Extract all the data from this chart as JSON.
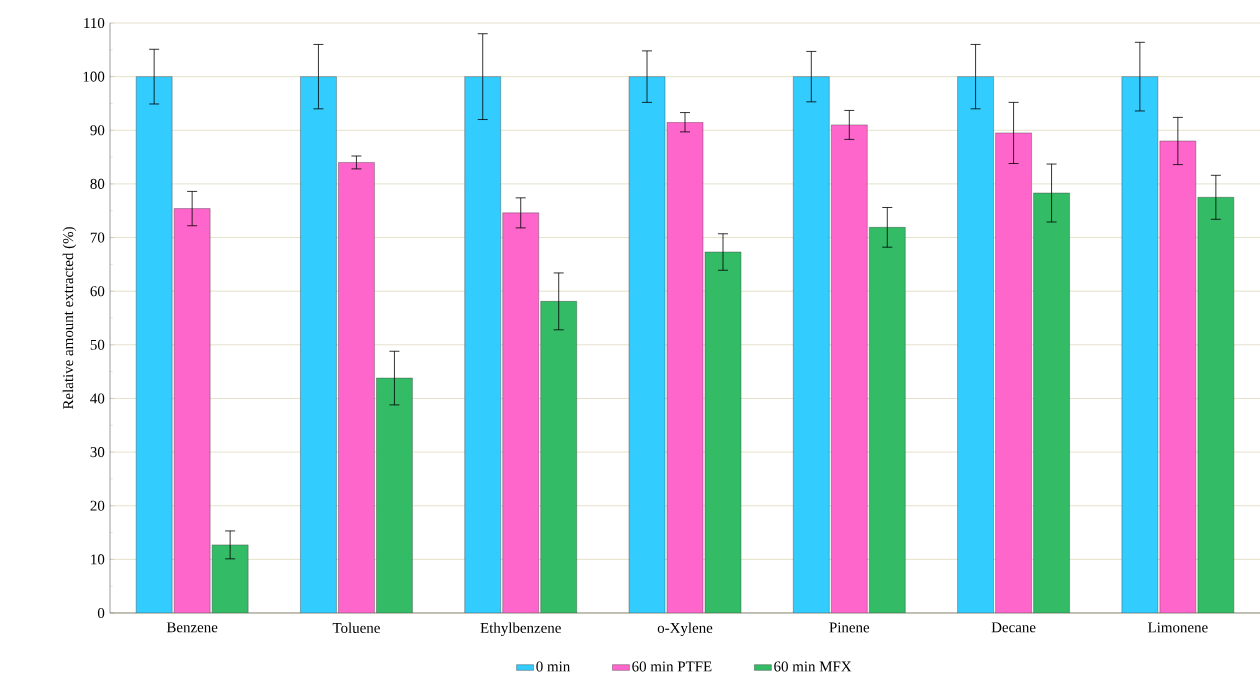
{
  "chart_data": {
    "type": "bar",
    "ylabel": "Relative amount extracted (%)",
    "categories": [
      "Benzene",
      "Toluene",
      "Ethylbenzene",
      "o-Xylene",
      "Pinene",
      "Decane",
      "Limonene"
    ],
    "series": [
      {
        "name": "0 min",
        "color": "#33ccff",
        "values": [
          100,
          100,
          100,
          100,
          100,
          100,
          100
        ],
        "errors": [
          5.1,
          6,
          8,
          4.8,
          4.7,
          6,
          6.4
        ]
      },
      {
        "name": "60 min PTFE",
        "color": "#ff66cc",
        "values": [
          75.4,
          84,
          74.6,
          91.5,
          91,
          89.5,
          88
        ],
        "errors": [
          3.2,
          1.2,
          2.8,
          1.8,
          2.7,
          5.7,
          4.4
        ]
      },
      {
        "name": "60 min MFX",
        "color": "#33bb66",
        "values": [
          12.7,
          43.8,
          58.1,
          67.3,
          71.9,
          78.3,
          77.5
        ],
        "errors": [
          2.6,
          5,
          5.3,
          3.4,
          3.7,
          5.4,
          4.1
        ]
      }
    ],
    "ylim": [
      0,
      110
    ],
    "yticks": [
      0,
      10,
      20,
      30,
      40,
      50,
      60,
      70,
      80,
      90,
      100,
      110
    ],
    "grid": "y",
    "legend": "bottom"
  }
}
